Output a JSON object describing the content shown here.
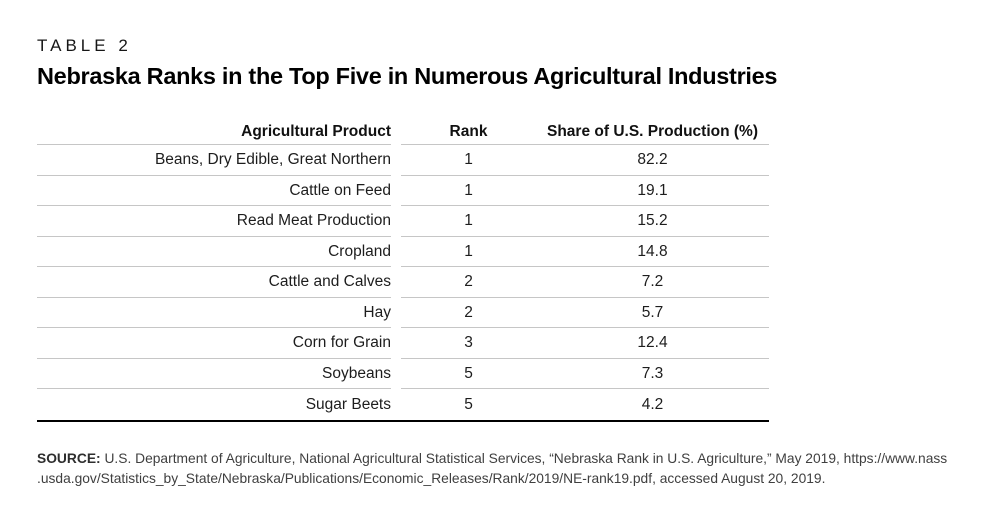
{
  "kicker": "TABLE 2",
  "title": "Nebraska Ranks in the Top Five in Numerous Agricultural Industries",
  "chart_data": {
    "type": "table",
    "title": "Nebraska Ranks in the Top Five in Numerous Agricultural Industries",
    "table_label": "TABLE 2",
    "columns": [
      "Agricultural Product",
      "Rank",
      "Share of U.S. Production (%)"
    ],
    "rows": [
      [
        "Beans, Dry Edible, Great Northern",
        1,
        82.2
      ],
      [
        "Cattle on Feed",
        1,
        19.1
      ],
      [
        "Read Meat Production",
        1,
        15.2
      ],
      [
        "Cropland",
        1,
        14.8
      ],
      [
        "Cattle and Calves",
        2,
        7.2
      ],
      [
        "Hay",
        2,
        5.7
      ],
      [
        "Corn for Grain",
        3,
        12.4
      ],
      [
        "Soybeans",
        5,
        7.3
      ],
      [
        "Sugar Beets",
        5,
        4.2
      ]
    ]
  },
  "source": {
    "label": "SOURCE:",
    "line1": " U.S. Department of Agriculture, National Agricultural Statistical Services, “Nebraska Rank in U.S. Agriculture,” May 2019, https://www.nass",
    "line2": ".usda.gov/Statistics_by_State/Nebraska/Publications/Economic_Releases/Rank/2019/NE-rank19.pdf, accessed August 20, 2019."
  },
  "colors": {
    "background": "#ffffff",
    "row_separator": "#c6c6c6",
    "bottom_rule": "#000000",
    "body_text": "#1d1d1d",
    "source_text": "#3f3f3f"
  }
}
